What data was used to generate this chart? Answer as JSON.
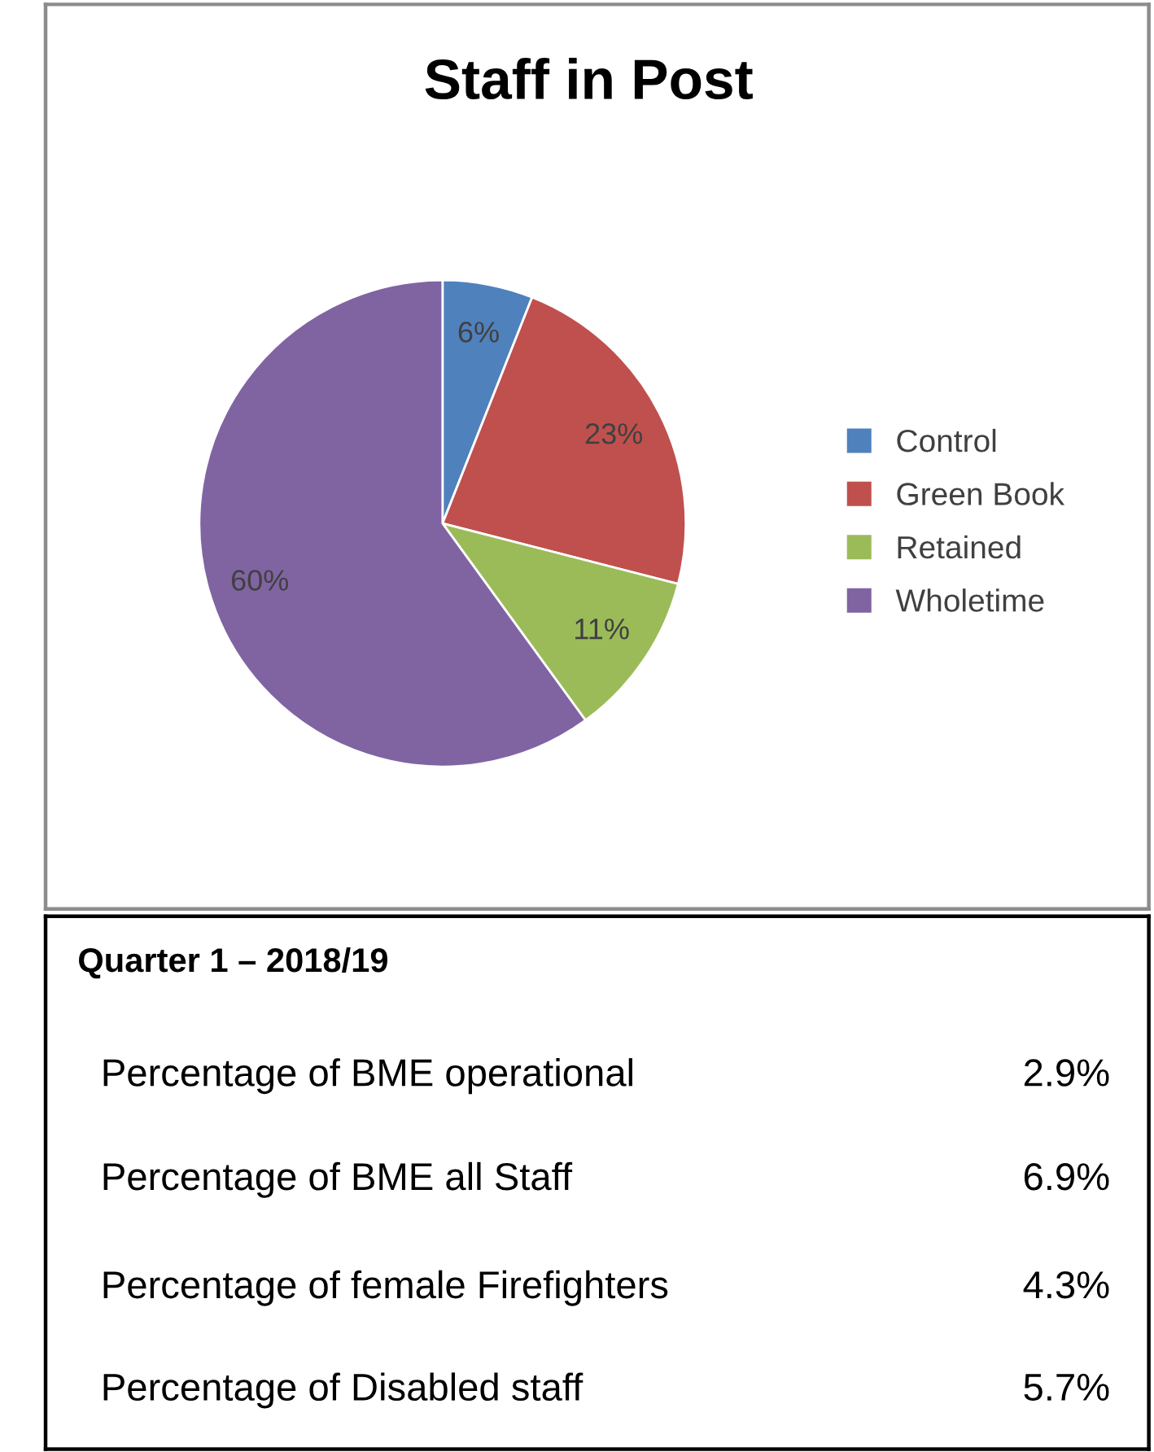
{
  "chart_data": [
    {
      "type": "pie",
      "title": "Staff in Post",
      "categories": [
        "Control",
        "Green Book",
        "Retained",
        "Wholetime"
      ],
      "values": [
        6,
        23,
        11,
        60
      ],
      "colors": [
        "#4f81bd",
        "#c0504d",
        "#9bbb59",
        "#8064a2"
      ],
      "value_labels": [
        "6%",
        "23%",
        "11%",
        "60%"
      ],
      "legend": "right"
    },
    {
      "type": "other",
      "title": "Quarter 1 – 2018/19",
      "annotations": [
        "Percentage of BME operational",
        "2.9%",
        "Percentage of BME all Staff",
        "6.9%",
        "Percentage of female Firefighters",
        "4.3%",
        "Percentage of Disabled staff",
        "5.7%"
      ]
    }
  ]
}
